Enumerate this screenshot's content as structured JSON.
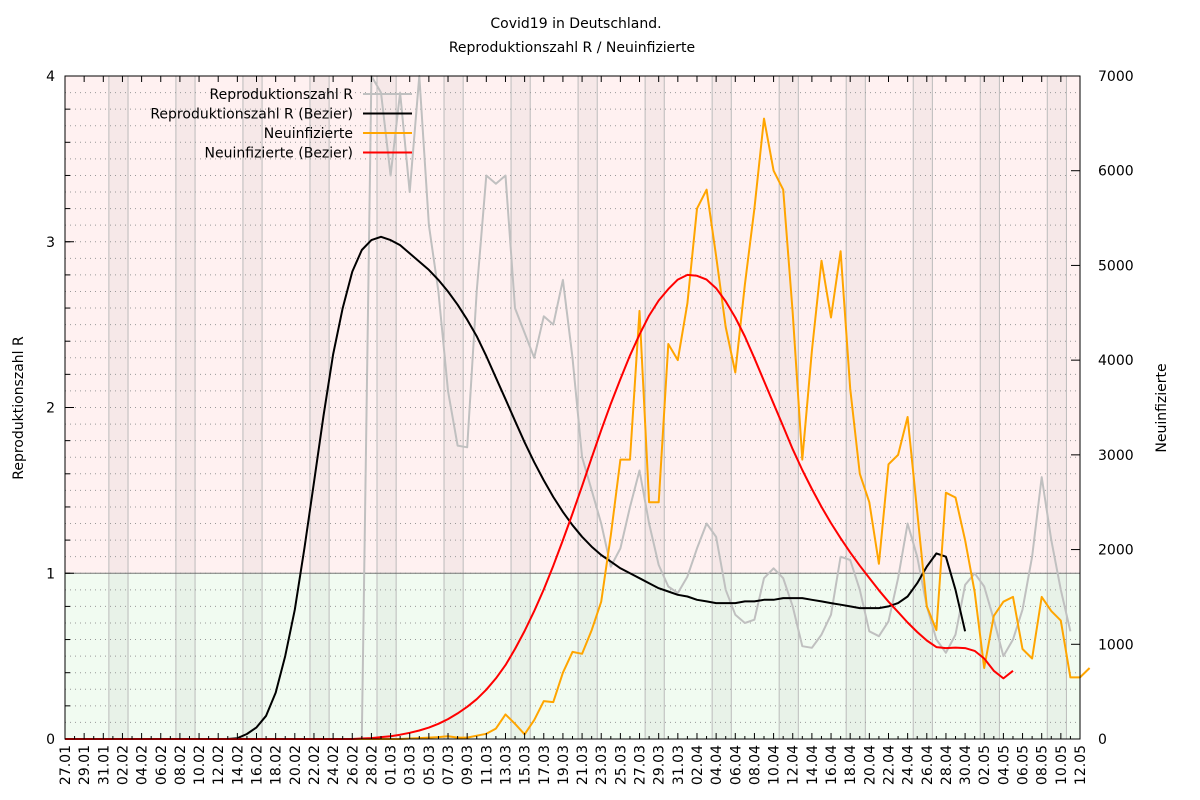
{
  "chart_data": {
    "type": "line",
    "title": [
      "Covid19 in Deutschland.",
      "Reproduktionszahl R / Neuinfizierte"
    ],
    "ylabel": "Reproduktionszahl R",
    "y2label": "Neuinfizierte",
    "ylim": [
      0,
      4
    ],
    "y2lim": [
      0,
      7000
    ],
    "yticks": [
      "0",
      "1",
      "2",
      "3",
      "4"
    ],
    "y2ticks": [
      "0",
      "1000",
      "2000",
      "3000",
      "4000",
      "5000",
      "6000",
      "7000"
    ],
    "x_start": "27.01",
    "x_end": "12.05",
    "xtick_labels": [
      "27.01",
      "29.01",
      "31.01",
      "02.02",
      "04.02",
      "06.02",
      "08.02",
      "10.02",
      "12.02",
      "14.02",
      "16.02",
      "18.02",
      "20.02",
      "22.02",
      "24.02",
      "26.02",
      "28.02",
      "01.03",
      "03.03",
      "05.03",
      "07.03",
      "09.03",
      "11.03",
      "13.03",
      "15.03",
      "17.03",
      "19.03",
      "21.03",
      "23.03",
      "25.03",
      "27.03",
      "29.03",
      "31.03",
      "02.04",
      "04.04",
      "06.04",
      "08.04",
      "10.04",
      "12.04",
      "14.04",
      "16.04",
      "18.04",
      "20.04",
      "22.04",
      "24.04",
      "26.04",
      "28.04",
      "30.04",
      "02.05",
      "04.05",
      "06.05",
      "08.05",
      "10.05",
      "12.05"
    ],
    "threshold": 1,
    "zones": [
      {
        "name": "above-1",
        "color": "#fff1f1"
      },
      {
        "name": "below-1",
        "color": "#f1fbf1"
      }
    ],
    "weekend_shading": true,
    "legend_position": "top-left",
    "series": [
      {
        "name": "Reproduktionszahl R",
        "axis": "y",
        "color": "#c0c0c0",
        "values": [
          null,
          null,
          null,
          null,
          null,
          null,
          null,
          null,
          null,
          null,
          null,
          null,
          null,
          null,
          null,
          null,
          null,
          null,
          null,
          null,
          null,
          null,
          null,
          null,
          null,
          null,
          null,
          null,
          null,
          null,
          null,
          0,
          4.5,
          3.9,
          3.4,
          3.9,
          3.3,
          4.3,
          3.1,
          2.7,
          2.1,
          1.77,
          1.76,
          2.7,
          3.4,
          3.35,
          3.4,
          2.6,
          2.45,
          2.3,
          2.55,
          2.5,
          2.77,
          2.3,
          1.7,
          1.5,
          1.3,
          1.04,
          1.15,
          1.4,
          1.62,
          1.3,
          1.05,
          0.92,
          0.88,
          0.98,
          1.15,
          1.3,
          1.22,
          0.9,
          0.75,
          0.7,
          0.72,
          0.97,
          1.03,
          0.97,
          0.8,
          0.56,
          0.55,
          0.63,
          0.75,
          1.1,
          1.08,
          0.9,
          0.65,
          0.62,
          0.71,
          0.97,
          1.3,
          1.1,
          0.8,
          0.6,
          0.52,
          0.63,
          0.93,
          1.0,
          0.92,
          0.72,
          0.5,
          0.6,
          0.78,
          1.1,
          1.58,
          1.2,
          0.9,
          0.65
        ]
      },
      {
        "name": "Reproduktionszahl R (Bezier)",
        "axis": "y",
        "color": "#000000",
        "values": [
          0,
          0,
          0,
          0,
          0,
          0,
          0,
          0,
          0,
          0,
          0,
          0,
          0,
          0,
          0,
          0,
          0,
          0,
          0.005,
          0.03,
          0.07,
          0.14,
          0.28,
          0.5,
          0.78,
          1.15,
          1.55,
          1.95,
          2.32,
          2.6,
          2.82,
          2.95,
          3.01,
          3.03,
          3.01,
          2.98,
          2.93,
          2.88,
          2.83,
          2.77,
          2.7,
          2.62,
          2.53,
          2.43,
          2.31,
          2.18,
          2.05,
          1.92,
          1.79,
          1.67,
          1.56,
          1.46,
          1.37,
          1.29,
          1.22,
          1.16,
          1.11,
          1.07,
          1.03,
          1.0,
          0.97,
          0.94,
          0.91,
          0.89,
          0.87,
          0.86,
          0.84,
          0.83,
          0.82,
          0.82,
          0.82,
          0.83,
          0.83,
          0.84,
          0.84,
          0.85,
          0.85,
          0.85,
          0.84,
          0.83,
          0.82,
          0.81,
          0.8,
          0.79,
          0.79,
          0.79,
          0.8,
          0.82,
          0.86,
          0.94,
          1.04,
          1.12,
          1.1,
          0.9,
          0.65
        ]
      },
      {
        "name": "Neuinfizierte",
        "axis": "y2",
        "color": "#ffa500",
        "values": [
          0,
          0,
          0,
          0,
          0,
          0,
          0,
          0,
          0,
          0,
          0,
          0,
          0,
          0,
          0,
          0,
          0,
          0,
          0,
          0,
          0,
          0,
          0,
          0,
          0,
          0,
          0,
          0,
          0,
          0,
          0,
          0,
          0,
          0,
          0,
          0,
          5,
          10,
          15,
          20,
          30,
          15,
          15,
          35,
          55,
          110,
          260,
          160,
          50,
          200,
          400,
          390,
          700,
          920,
          900,
          1150,
          1450,
          2150,
          2950,
          2950,
          4520,
          2500,
          2500,
          4170,
          4000,
          4600,
          5600,
          5800,
          5100,
          4350,
          3870,
          4800,
          5600,
          6550,
          6000,
          5800,
          4500,
          2950,
          4100,
          5050,
          4450,
          5150,
          3700,
          2800,
          2500,
          1850,
          2900,
          3000,
          3400,
          2400,
          1400,
          1150,
          2600,
          2550,
          2100,
          1550,
          750,
          1300,
          1450,
          1500,
          950,
          850,
          1500,
          1350,
          1250,
          650,
          650,
          750
        ]
      },
      {
        "name": "Neuinfizierte (Bezier)",
        "axis": "y2",
        "color": "#ff0000",
        "values": [
          0,
          0,
          0,
          0,
          0,
          0,
          0,
          0,
          0,
          0,
          0,
          0,
          0,
          0,
          0,
          0,
          0,
          0,
          0,
          0,
          0,
          0,
          0,
          0,
          0,
          0,
          0,
          0,
          0,
          0,
          0,
          5,
          10,
          20,
          30,
          45,
          65,
          90,
          120,
          160,
          210,
          270,
          340,
          420,
          520,
          640,
          780,
          950,
          1140,
          1350,
          1580,
          1830,
          2100,
          2380,
          2670,
          2970,
          3260,
          3540,
          3800,
          4050,
          4270,
          4470,
          4630,
          4750,
          4850,
          4900,
          4890,
          4850,
          4760,
          4620,
          4450,
          4250,
          4020,
          3780,
          3540,
          3300,
          3060,
          2840,
          2640,
          2450,
          2280,
          2120,
          1970,
          1830,
          1700,
          1570,
          1450,
          1340,
          1230,
          1130,
          1040,
          970,
          960,
          965,
          960,
          930,
          850,
          720,
          640,
          720
        ]
      }
    ]
  }
}
